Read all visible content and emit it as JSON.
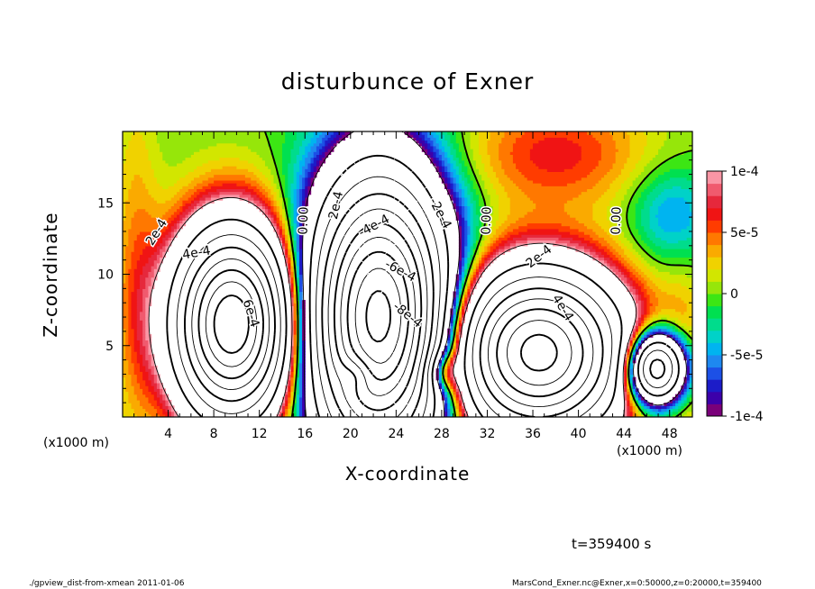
{
  "chart_data": {
    "type": "heatmap",
    "title": "disturbunce of Exner",
    "xlabel": "X-coordinate",
    "ylabel": "Z-coordinate",
    "x_unit_label": "(x1000 m)",
    "x_unit_label_right": "(x1000 m)",
    "xlim": [
      0,
      50
    ],
    "ylim": [
      0,
      20
    ],
    "x_ticks": [
      4,
      8,
      12,
      16,
      20,
      24,
      28,
      32,
      36,
      40,
      44,
      48
    ],
    "x_tick_labels": [
      "4",
      "8",
      "12",
      "16",
      "20",
      "24",
      "28",
      "32",
      "36",
      "40",
      "44",
      "48"
    ],
    "y_ticks": [
      5,
      10,
      15
    ],
    "y_tick_labels": [
      "5",
      "10",
      "15"
    ],
    "colorbar": {
      "min": -0.0001,
      "max": 0.0001,
      "ticks": [
        0.0001,
        5e-05,
        0,
        -5e-05,
        -0.0001
      ],
      "tick_labels": [
        "1e-4",
        "5e-5",
        "0",
        "-5e-5",
        "-1e-4"
      ],
      "colors": [
        "#7a007a",
        "#3c00aa",
        "#1c1cc8",
        "#1c50e6",
        "#1e88f0",
        "#00b4f0",
        "#00d2c8",
        "#00dc8c",
        "#00e050",
        "#3ce614",
        "#96e60a",
        "#d2e600",
        "#f0d200",
        "#faaa00",
        "#ff7800",
        "#ff3c00",
        "#f01414",
        "#e6283c",
        "#f05a6e",
        "#fa96a5"
      ]
    },
    "contour_labels": [
      "2e-4",
      "4e-4",
      "6e-4",
      "0.00",
      "2e-4",
      "-2e-4",
      "-4e-4",
      "-6e-4",
      "-8e-4",
      "0.00",
      "2e-4",
      "4e-4",
      "0.00"
    ],
    "time_label": "t=359400 s",
    "footer_left": "./gpview_dist-from-xmean  2011-01-06",
    "footer_right": "MarsCond_Exner.nc@Exner,x=0:50000,z=0:20000,t=359400"
  }
}
